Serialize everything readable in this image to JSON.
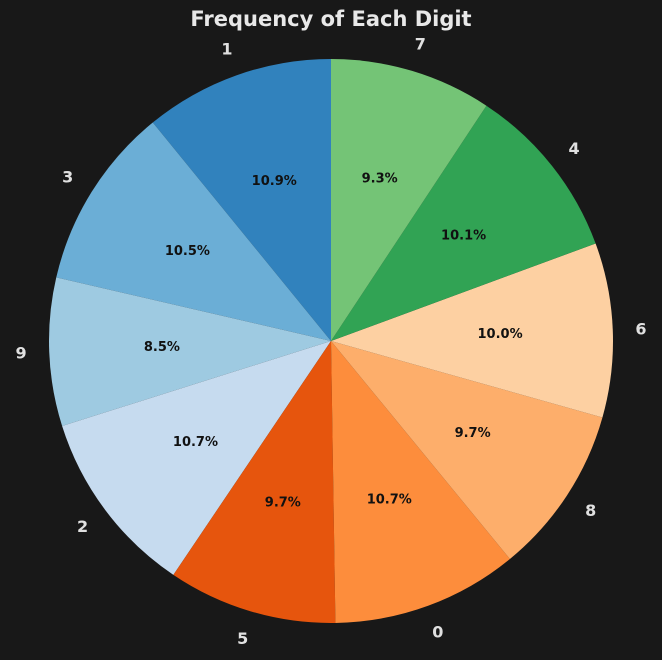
{
  "chart_data": {
    "type": "pie",
    "title": "Frequency of Each Digit",
    "start_angle_deg": 90,
    "direction": "counterclockwise",
    "slices": [
      {
        "label": "1",
        "value": 10.9,
        "pct_label": "10.9%",
        "color": "#3182bd"
      },
      {
        "label": "3",
        "value": 10.5,
        "pct_label": "10.5%",
        "color": "#6baed6"
      },
      {
        "label": "9",
        "value": 8.5,
        "pct_label": "8.5%",
        "color": "#9ecae1"
      },
      {
        "label": "2",
        "value": 10.7,
        "pct_label": "10.7%",
        "color": "#c6dbef"
      },
      {
        "label": "5",
        "value": 9.7,
        "pct_label": "9.7%",
        "color": "#e6550d"
      },
      {
        "label": "0",
        "value": 10.7,
        "pct_label": "10.7%",
        "color": "#fd8d3c"
      },
      {
        "label": "8",
        "value": 9.7,
        "pct_label": "9.7%",
        "color": "#fdae6b"
      },
      {
        "label": "6",
        "value": 10.0,
        "pct_label": "10.0%",
        "color": "#fdd0a2"
      },
      {
        "label": "4",
        "value": 10.1,
        "pct_label": "10.1%",
        "color": "#31a354"
      },
      {
        "label": "7",
        "value": 9.3,
        "pct_label": "9.3%",
        "color": "#74c476"
      }
    ]
  }
}
